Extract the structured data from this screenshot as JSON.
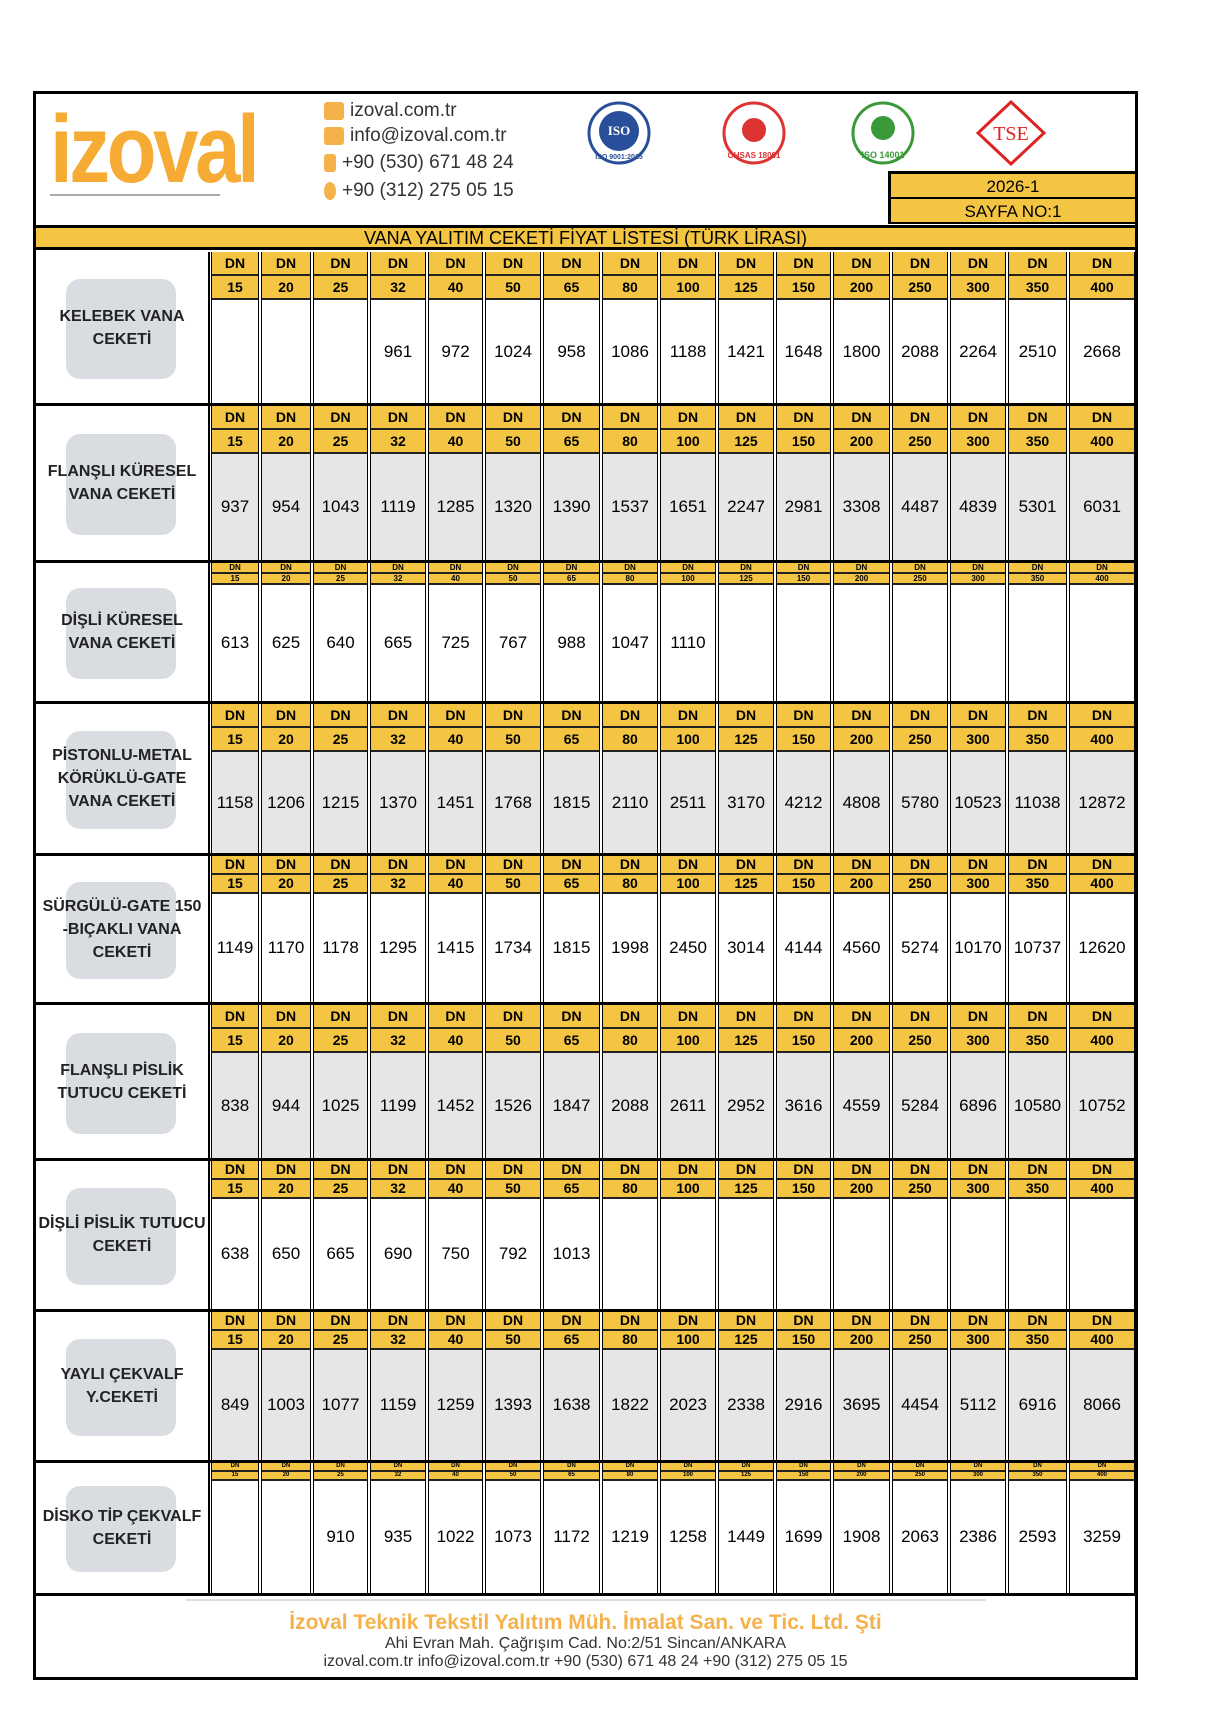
{
  "header": {
    "logo_text": "izoval",
    "website": "izoval.com.tr",
    "email": "info@izoval.com.tr",
    "mobile": "+90 (530) 671 48 24",
    "phone": "+90 (312) 275 05 15",
    "certificates": [
      "ISO 9001:2015",
      "OHSAS 18001",
      "ISO 14001",
      "TSE"
    ],
    "edition": "2026-1",
    "page_no": "SAYFA NO:1"
  },
  "title": "VANA YALITIM CEKETİ FİYAT LİSTESİ (TÜRK LİRASI)",
  "dn_label": "DN",
  "sizes": [
    "15",
    "20",
    "25",
    "32",
    "40",
    "50",
    "65",
    "80",
    "100",
    "125",
    "150",
    "200",
    "250",
    "300",
    "350",
    "400"
  ],
  "sections": [
    {
      "name": "KELEBEK VANA CEKETİ",
      "prices": [
        "",
        "",
        "",
        "961",
        "972",
        "1024",
        "958",
        "1086",
        "1188",
        "1421",
        "1648",
        "1800",
        "2088",
        "2264",
        "2510",
        "2668"
      ]
    },
    {
      "name": "FLANŞLI KÜRESEL\nVANA CEKETİ",
      "prices": [
        "937",
        "954",
        "1043",
        "1119",
        "1285",
        "1320",
        "1390",
        "1537",
        "1651",
        "2247",
        "2981",
        "3308",
        "4487",
        "4839",
        "5301",
        "6031"
      ]
    },
    {
      "name": "DİŞLİ KÜRESEL\nVANA CEKETİ",
      "prices": [
        "613",
        "625",
        "640",
        "665",
        "725",
        "767",
        "988",
        "1047",
        "1110",
        "",
        "",
        "",
        "",
        "",
        "",
        ""
      ]
    },
    {
      "name": "PİSTONLU-METAL\nKÖRÜKLÜ-GATE\nVANA CEKETİ",
      "prices": [
        "1158",
        "1206",
        "1215",
        "1370",
        "1451",
        "1768",
        "1815",
        "2110",
        "2511",
        "3170",
        "4212",
        "4808",
        "5780",
        "10523",
        "11038",
        "12872"
      ]
    },
    {
      "name": "SÜRGÜLÜ-GATE 150\n-BIÇAKLI VANA\nCEKETİ",
      "prices": [
        "1149",
        "1170",
        "1178",
        "1295",
        "1415",
        "1734",
        "1815",
        "1998",
        "2450",
        "3014",
        "4144",
        "4560",
        "5274",
        "10170",
        "10737",
        "12620"
      ]
    },
    {
      "name": "FLANŞLI PİSLİK\nTUTUCU CEKETİ",
      "prices": [
        "838",
        "944",
        "1025",
        "1199",
        "1452",
        "1526",
        "1847",
        "2088",
        "2611",
        "2952",
        "3616",
        "4559",
        "5284",
        "6896",
        "10580",
        "10752"
      ]
    },
    {
      "name": "DİŞLİ PİSLİK TUTUCU\nCEKETİ",
      "prices": [
        "638",
        "650",
        "665",
        "690",
        "750",
        "792",
        "1013",
        "",
        "",
        "",
        "",
        "",
        "",
        "",
        "",
        ""
      ]
    },
    {
      "name": "YAYLI ÇEKVALF\nY.CEKETİ",
      "prices": [
        "849",
        "1003",
        "1077",
        "1159",
        "1259",
        "1393",
        "1638",
        "1822",
        "2023",
        "2338",
        "2916",
        "3695",
        "4454",
        "5112",
        "6916",
        "8066"
      ]
    },
    {
      "name": "DİSKO TİP ÇEKVALF\nCEKETİ",
      "prices": [
        "",
        "",
        "910",
        "935",
        "1022",
        "1073",
        "1172",
        "1219",
        "1258",
        "1449",
        "1699",
        "1908",
        "2063",
        "2386",
        "2593",
        "3259"
      ]
    }
  ],
  "footer": {
    "company": "İzoval Teknik Tekstil Yalıtım  Müh. İmalat San. ve Tic. Ltd. Şti",
    "address": "Ahi Evran Mah. Çağrışım Cad. No:2/51 Sincan/ANKARA",
    "website": "izoval.com.tr",
    "email": "info@izoval.com.tr",
    "mobile": "+90 (530) 671 48 24",
    "phone": "+90 (312) 275 05 15"
  },
  "colors": {
    "accent": "#f4c542",
    "brand": "#f6ab35",
    "grey_row": "#e6e6e6"
  }
}
